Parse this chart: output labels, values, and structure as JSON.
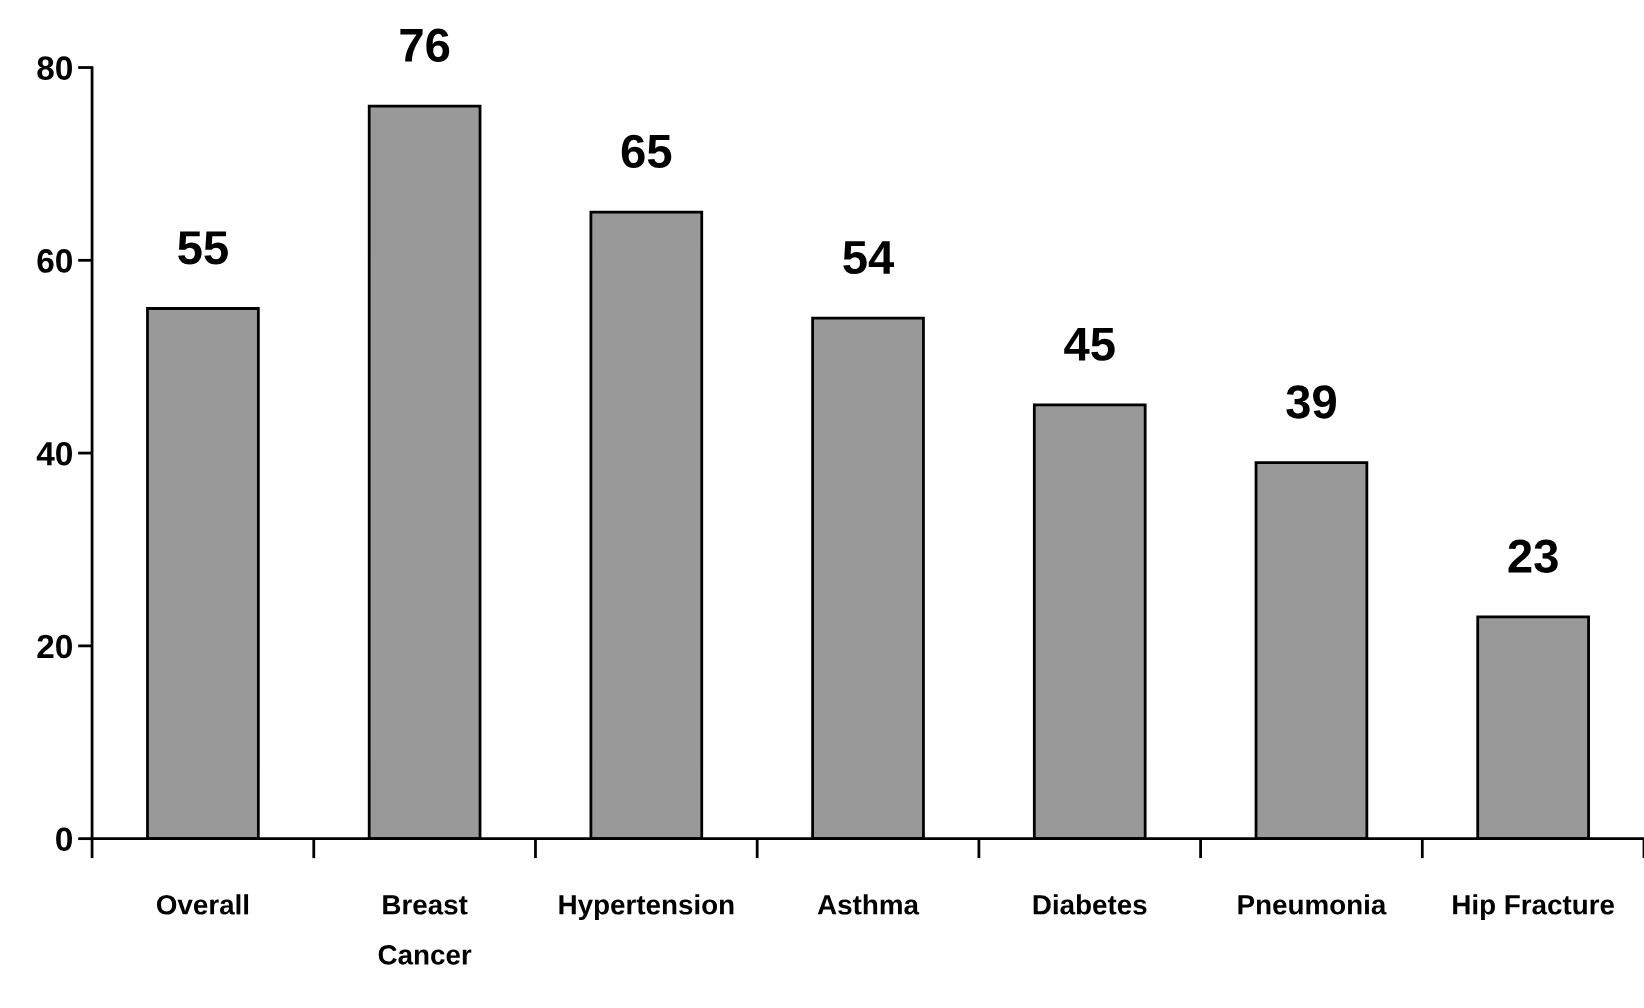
{
  "chart_data": {
    "type": "bar",
    "categories": [
      "Overall",
      "Breast\nCancer",
      "Hypertension",
      "Asthma",
      "Diabetes",
      "Pneumonia",
      "Hip Fracture"
    ],
    "values": [
      55,
      76,
      65,
      54,
      45,
      39,
      23
    ],
    "color": "#999999",
    "ylim": [
      0,
      80
    ],
    "yticks": [
      0,
      20,
      40,
      60,
      80
    ],
    "data_labels": true,
    "grid": false,
    "legend": false
  }
}
